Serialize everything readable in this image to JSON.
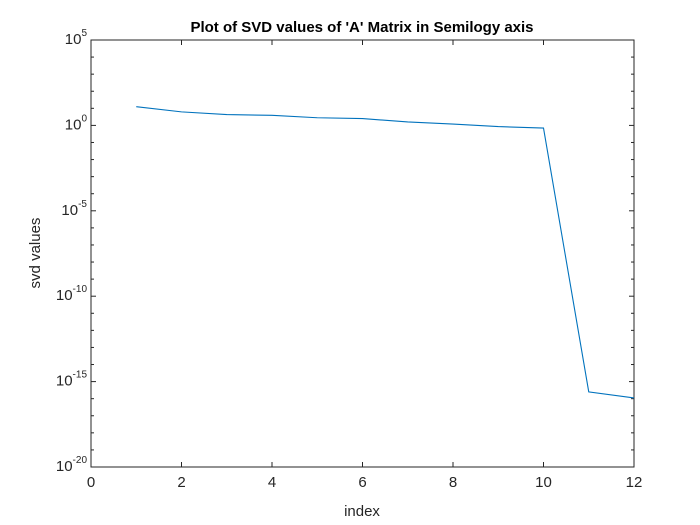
{
  "chart_data": {
    "type": "line",
    "title": "Plot of SVD values of 'A' Matrix in Semilogy axis",
    "xlabel": "index",
    "ylabel": "svd values",
    "yscale": "log",
    "xlim": [
      0,
      12
    ],
    "ylim": [
      1e-20,
      100000
    ],
    "xticks": [
      0,
      2,
      4,
      6,
      8,
      10,
      12
    ],
    "xtick_labels": [
      "0",
      "2",
      "4",
      "6",
      "8",
      "10",
      "12"
    ],
    "yticks": [
      1e-20,
      1e-15,
      1e-10,
      1e-05,
      1,
      100000
    ],
    "ytick_labels": [
      {
        "base": "10",
        "exp": "-20"
      },
      {
        "base": "10",
        "exp": "-15"
      },
      {
        "base": "10",
        "exp": "-10"
      },
      {
        "base": "10",
        "exp": "-5"
      },
      {
        "base": "10",
        "exp": "0"
      },
      {
        "base": "10",
        "exp": "5"
      }
    ],
    "grid": false,
    "line_color": "#0072BD",
    "axis_color": "#262626",
    "series": [
      {
        "x": [
          1,
          2,
          3,
          4,
          5,
          6,
          7,
          8,
          9,
          10,
          11,
          12
        ],
        "y": [
          12.5,
          6.2,
          4.3,
          3.9,
          2.8,
          2.5,
          1.6,
          1.2,
          0.85,
          0.7,
          2.5e-16,
          1.1e-16
        ]
      }
    ]
  }
}
